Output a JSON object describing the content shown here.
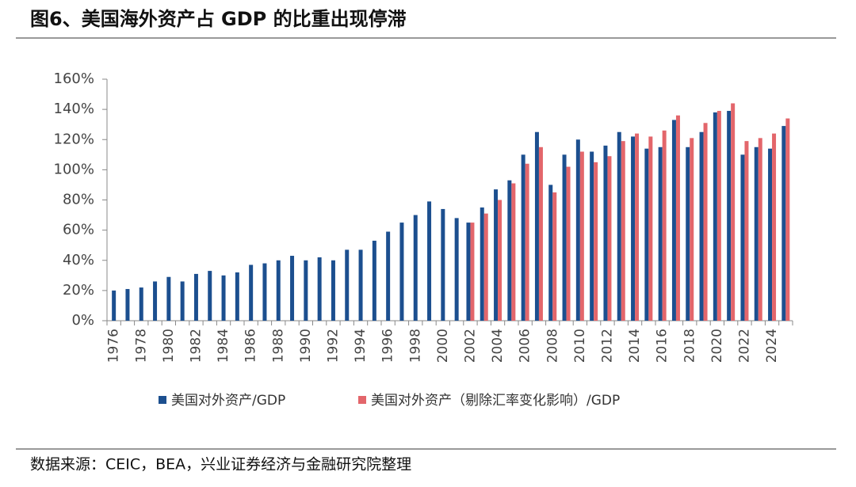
{
  "chart_data": {
    "type": "bar",
    "title": "图6、美国海外资产占 GDP 的比重出现停滞",
    "source": "数据来源：CEIC，BEA，兴业证券经济与金融研究院整理",
    "categories": [
      "1976",
      null,
      "1978",
      null,
      "1980",
      null,
      "1982",
      null,
      "1984",
      null,
      "1986",
      null,
      "1988",
      null,
      "1990",
      null,
      "1992",
      null,
      "1994",
      null,
      "1996",
      null,
      "1998",
      null,
      "2000",
      null,
      "2002",
      null,
      "2004",
      null,
      "2006",
      null,
      "2008",
      null,
      "2010",
      null,
      "2012",
      null,
      "2014",
      null,
      "2016",
      null,
      "2018",
      null,
      "2020",
      null,
      "2022",
      null,
      "2024",
      null
    ],
    "series": [
      {
        "name": "美国对外资产/GDP",
        "color": "#1c4f8f",
        "values": [
          20,
          21,
          22,
          26,
          29,
          26,
          31,
          33,
          30,
          32,
          37,
          38,
          40,
          43,
          40,
          42,
          40,
          47,
          47,
          53,
          59,
          65,
          70,
          79,
          74,
          68,
          65,
          75,
          87,
          93,
          110,
          125,
          90,
          110,
          120,
          112,
          116,
          125,
          122,
          114,
          115,
          133,
          115,
          125,
          138,
          139,
          110,
          115,
          114,
          129
        ]
      },
      {
        "name": "美国对外资产（剔除汇率变化影响）/GDP",
        "color": "#e3666b",
        "values": [
          null,
          null,
          null,
          null,
          null,
          null,
          null,
          null,
          null,
          null,
          null,
          null,
          null,
          null,
          null,
          null,
          null,
          null,
          null,
          null,
          null,
          null,
          null,
          null,
          null,
          null,
          65,
          71,
          80,
          91,
          104,
          115,
          85,
          102,
          112,
          105,
          109,
          119,
          124,
          122,
          126,
          136,
          121,
          131,
          139,
          144,
          119,
          121,
          124,
          134
        ]
      }
    ],
    "ylim": [
      0,
      160
    ],
    "yticks": [
      {
        "value": 0,
        "label": "0%"
      },
      {
        "value": 20,
        "label": "20%"
      },
      {
        "value": 40,
        "label": "40%"
      },
      {
        "value": 60,
        "label": "60%"
      },
      {
        "value": 80,
        "label": "80%"
      },
      {
        "value": 100,
        "label": "100%"
      },
      {
        "value": 120,
        "label": "120%"
      },
      {
        "value": 140,
        "label": "140%"
      },
      {
        "value": 160,
        "label": "160%"
      }
    ]
  }
}
